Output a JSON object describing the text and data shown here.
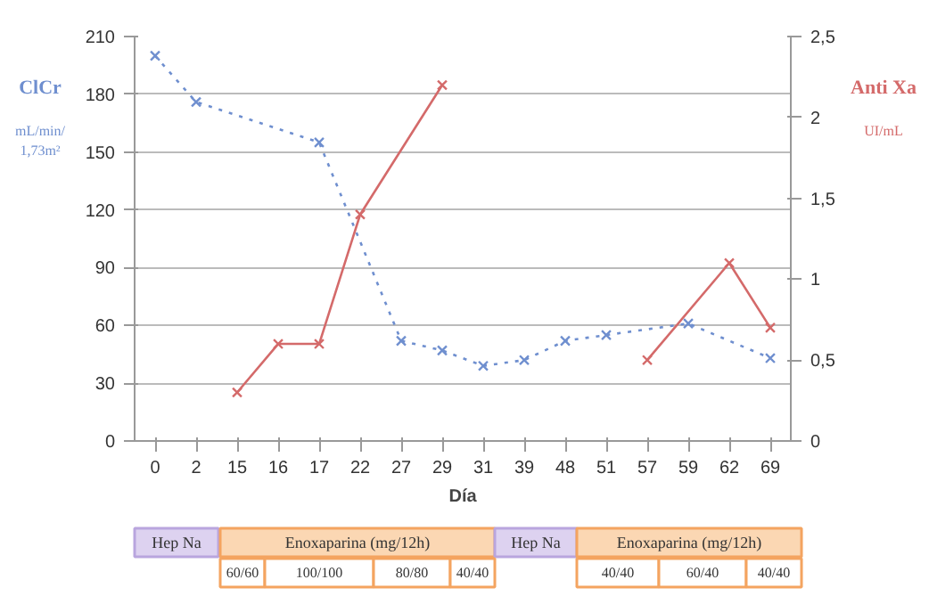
{
  "chart_data": {
    "type": "line",
    "xlabel": "Día",
    "ylabel": "ClCr",
    "y2label": "Anti Xa",
    "categories": [
      "0",
      "2",
      "15",
      "16",
      "17",
      "22",
      "27",
      "29",
      "31",
      "39",
      "48",
      "51",
      "57",
      "59",
      "62",
      "69"
    ],
    "series": [
      {
        "color": "#6f8fcf",
        "line_style": "dotted",
        "x": [
          "0",
          "2",
          "17",
          "27",
          "29",
          "31",
          "39",
          "48",
          "51",
          "59",
          "69"
        ],
        "values": [
          200,
          176,
          155,
          52,
          47,
          39,
          42,
          52,
          55,
          61,
          43
        ]
      },
      {
        "color": "#d46a6a",
        "line_style": "solid",
        "axis": "y2",
        "x": [
          "15",
          "16",
          "17",
          "22",
          "29"
        ],
        "values": [
          0.3,
          0.6,
          0.6,
          1.4,
          2.2
        ]
      },
      {
        "color": "#d46a6a",
        "line_style": "solid",
        "axis": "y2",
        "x": [
          "57",
          "62",
          "69"
        ],
        "values": [
          0.5,
          1.1,
          0.7
        ]
      }
    ],
    "ylim": [
      0,
      210
    ],
    "yticks": [
      0,
      30,
      60,
      90,
      120,
      150,
      180,
      210
    ],
    "y2lim": [
      0,
      2.5
    ],
    "y2ticks": [
      0,
      {
        "value": 0.5,
        "label": "0,5"
      },
      1,
      {
        "value": 1.5,
        "label": "1,5"
      },
      2,
      {
        "value": 2.5,
        "label": "2,5"
      }
    ],
    "grid": "y",
    "marker": "cross",
    "annotations": [
      "mL/min/\n1,73m²",
      "UI/mL",
      "Hep Na",
      "Enoxaparina (mg/12h)",
      "Hep Na",
      "Enoxaparina (mg/12h)",
      "60/60",
      "100/100",
      "80/80",
      "40/40",
      "40/40",
      "60/40",
      "40/40"
    ]
  }
}
